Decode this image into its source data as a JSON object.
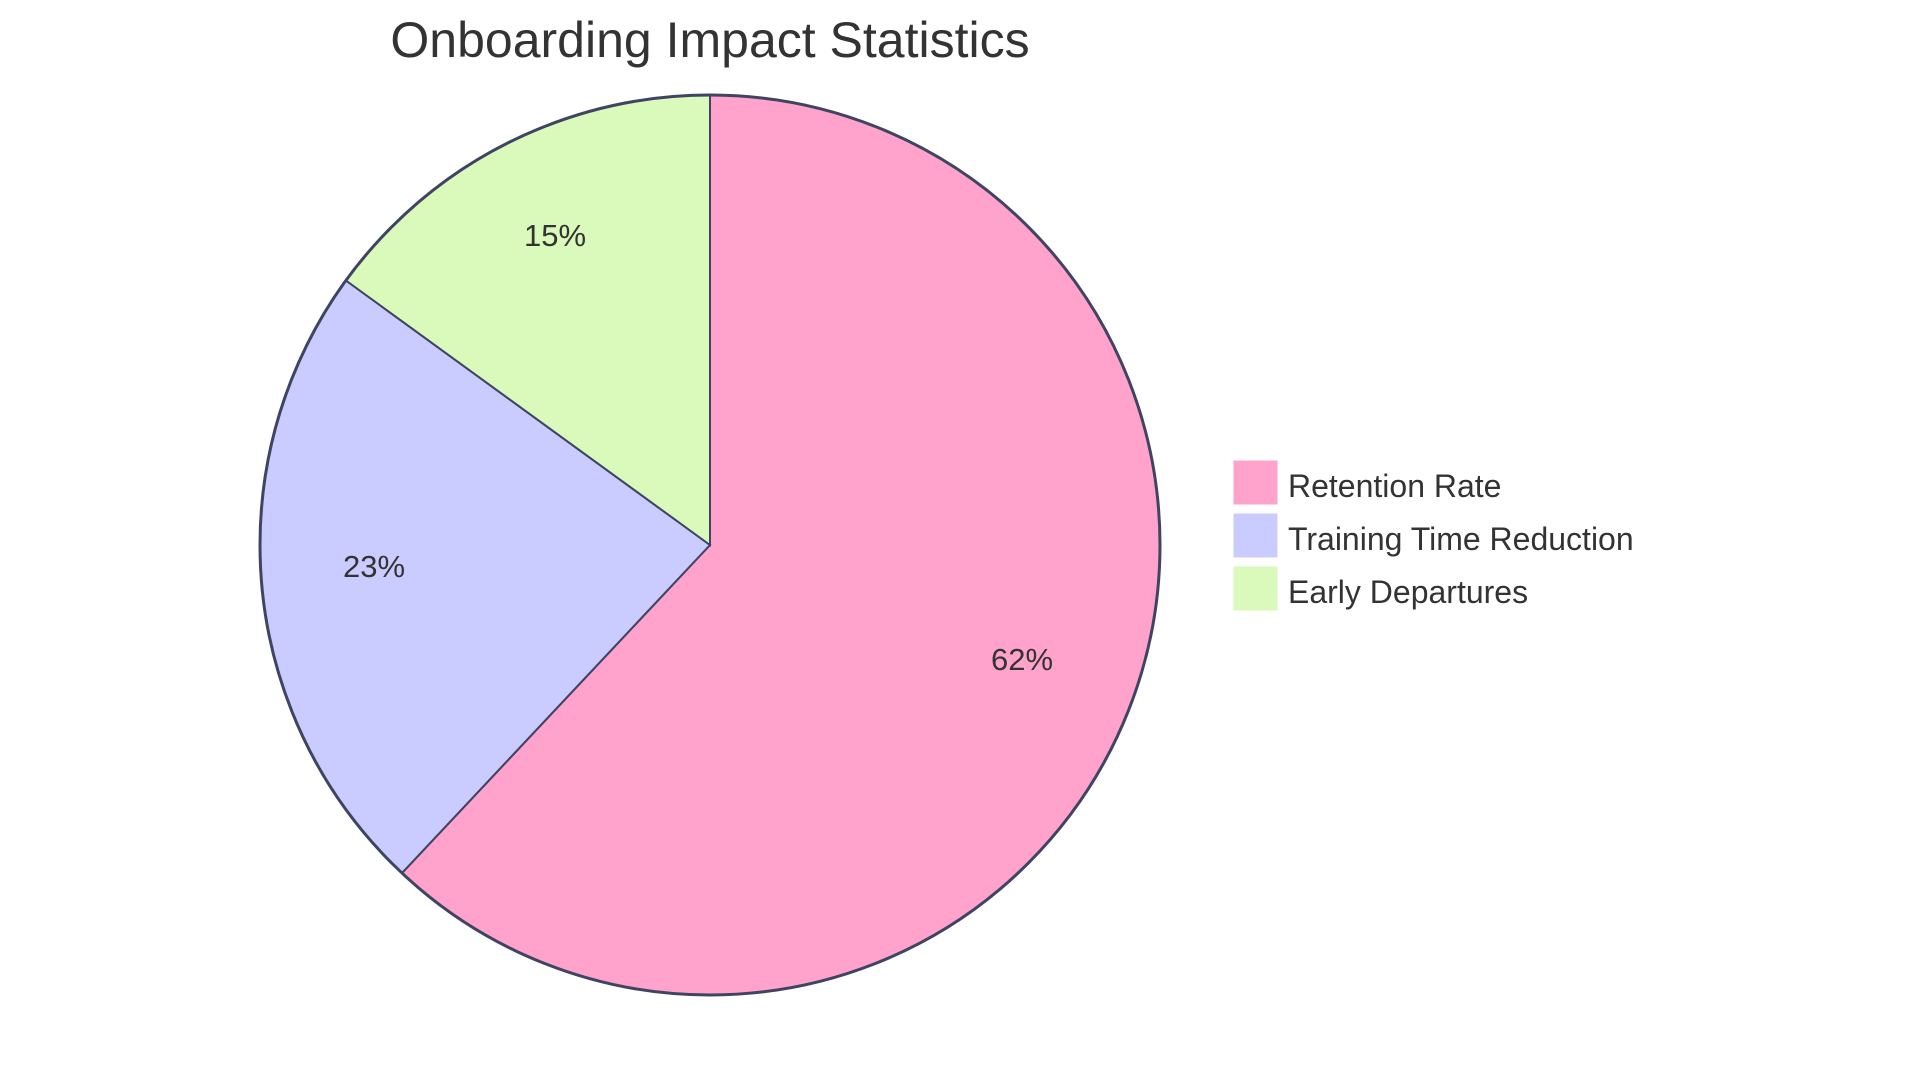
{
  "title": "Onboarding Impact Statistics",
  "colors": {
    "stroke": "#3f4463",
    "text": "#333333",
    "background": "#ffffff"
  },
  "legend": {
    "items": [
      {
        "label": "Retention Rate",
        "color": "#ffa2cc"
      },
      {
        "label": "Training Time Reduction",
        "color": "#cacbff"
      },
      {
        "label": "Early Departures",
        "color": "#dafabb"
      }
    ]
  },
  "slices": [
    {
      "label": "Retention Rate",
      "percent_label": "62%",
      "value": 62,
      "color": "#ffa2cc"
    },
    {
      "label": "Training Time Reduction",
      "percent_label": "23%",
      "value": 23,
      "color": "#cacbff"
    },
    {
      "label": "Early Departures",
      "percent_label": "15%",
      "value": 15,
      "color": "#dafabb"
    }
  ],
  "chart_data": {
    "type": "pie",
    "title": "Onboarding Impact Statistics",
    "categories": [
      "Retention Rate",
      "Training Time Reduction",
      "Early Departures"
    ],
    "values": [
      62,
      23,
      15
    ],
    "labels": [
      "62%",
      "23%",
      "15%"
    ],
    "colors": [
      "#ffa2cc",
      "#cacbff",
      "#dafabb"
    ],
    "start_angle": "12 o'clock, clockwise",
    "legend_position": "right"
  }
}
